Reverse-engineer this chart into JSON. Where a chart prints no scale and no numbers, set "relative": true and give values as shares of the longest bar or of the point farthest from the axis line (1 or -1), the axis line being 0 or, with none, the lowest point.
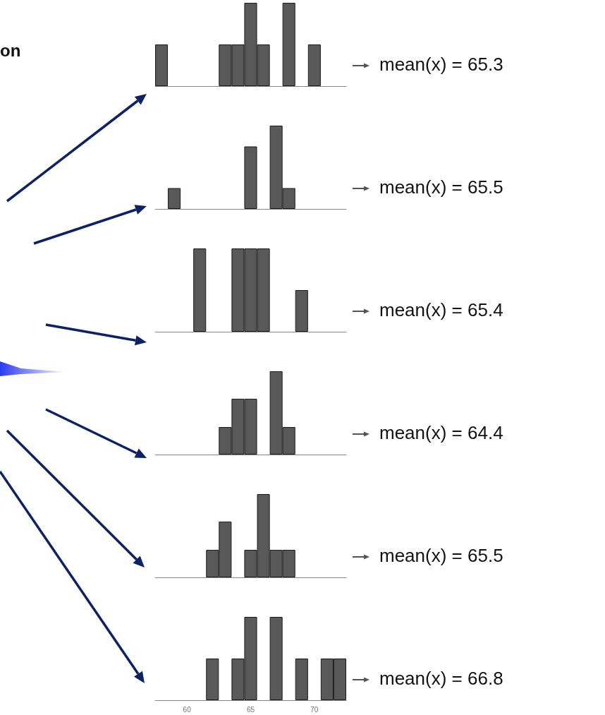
{
  "chart_data": [
    {
      "type": "other",
      "title": "on"
    },
    {
      "type": "bar",
      "relative": true,
      "color": "#595959",
      "categories": [
        null,
        null,
        "60",
        null,
        null,
        null,
        null,
        "65",
        null,
        null,
        null,
        null,
        "70",
        null,
        null
      ],
      "tick_labels": false,
      "values": [
        0.5,
        0,
        0,
        0,
        0,
        0.5,
        0.5,
        1,
        0.5,
        0,
        1,
        0,
        0.5,
        0,
        0
      ],
      "annotations": [
        "mean(x) = 65.3"
      ]
    },
    {
      "type": "bar",
      "relative": true,
      "color": "#595959",
      "categories": [
        null,
        null,
        "60",
        null,
        null,
        null,
        null,
        "65",
        null,
        null,
        null,
        null,
        "70",
        null,
        null
      ],
      "tick_labels": false,
      "values": [
        0,
        0.25,
        0,
        0,
        0,
        0,
        0,
        0.75,
        0,
        1,
        0.25,
        0,
        0,
        0,
        0
      ],
      "annotations": [
        "mean(x) = 65.5"
      ]
    },
    {
      "type": "bar",
      "relative": true,
      "color": "#595959",
      "categories": [
        null,
        null,
        "60",
        null,
        null,
        null,
        null,
        "65",
        null,
        null,
        null,
        null,
        "70",
        null,
        null
      ],
      "tick_labels": false,
      "values": [
        0,
        0,
        0,
        1,
        0,
        0,
        1,
        1,
        1,
        0,
        0,
        0.5,
        0,
        0,
        0
      ],
      "annotations": [
        "mean(x) = 65.4"
      ]
    },
    {
      "type": "bar",
      "relative": true,
      "color": "#595959",
      "categories": [
        null,
        null,
        "60",
        null,
        null,
        null,
        null,
        "65",
        null,
        null,
        null,
        null,
        "70",
        null,
        null
      ],
      "tick_labels": false,
      "values": [
        0,
        0,
        0,
        0,
        0,
        0.33,
        0.67,
        0.67,
        0,
        1,
        0.33,
        0,
        0,
        0,
        0
      ],
      "annotations": [
        "mean(x) = 64.4"
      ]
    },
    {
      "type": "bar",
      "relative": true,
      "color": "#595959",
      "categories": [
        null,
        null,
        "60",
        null,
        null,
        null,
        null,
        "65",
        null,
        null,
        null,
        null,
        "70",
        null,
        null
      ],
      "tick_labels": false,
      "values": [
        0,
        0,
        0,
        0,
        0.33,
        0.67,
        0,
        0.33,
        1,
        0.33,
        0.33,
        0,
        0,
        0,
        0
      ],
      "annotations": [
        "mean(x) = 65.5"
      ]
    },
    {
      "type": "bar",
      "relative": true,
      "color": "#595959",
      "categories": [
        null,
        null,
        "60",
        null,
        null,
        null,
        null,
        "65",
        null,
        null,
        null,
        null,
        "70",
        null,
        null
      ],
      "values": [
        0,
        0,
        0,
        0,
        0.5,
        0,
        0.5,
        1,
        0,
        1,
        0,
        0.5,
        0,
        0.5,
        0.5
      ],
      "annotations": [
        "mean(x) = 66.8"
      ]
    }
  ]
}
